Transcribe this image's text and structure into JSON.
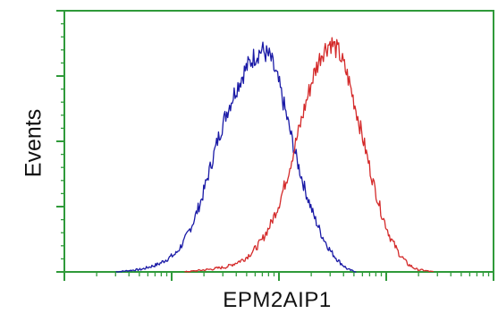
{
  "chart_data": {
    "type": "line",
    "title": "",
    "xlabel": "EPM2AIP1",
    "ylabel": "Events",
    "x_scale": "log",
    "xlim": [
      0,
      1
    ],
    "ylim": [
      0,
      1
    ],
    "grid": false,
    "frame_color": "#2f9a3a",
    "series": [
      {
        "color": "#1a1aa6",
        "x": [
          0.12,
          0.18,
          0.22,
          0.26,
          0.28,
          0.3,
          0.32,
          0.34,
          0.36,
          0.38,
          0.4,
          0.42,
          0.44,
          0.46,
          0.48,
          0.5,
          0.52,
          0.54,
          0.56,
          0.58,
          0.6,
          0.62,
          0.64,
          0.66,
          0.68
        ],
        "y": [
          0.0,
          0.01,
          0.03,
          0.07,
          0.12,
          0.19,
          0.28,
          0.4,
          0.52,
          0.62,
          0.7,
          0.77,
          0.82,
          0.85,
          0.82,
          0.72,
          0.58,
          0.44,
          0.32,
          0.22,
          0.14,
          0.08,
          0.04,
          0.01,
          0.0
        ]
      },
      {
        "color": "#d42a2a",
        "x": [
          0.28,
          0.34,
          0.38,
          0.42,
          0.44,
          0.46,
          0.48,
          0.5,
          0.52,
          0.54,
          0.56,
          0.58,
          0.6,
          0.62,
          0.64,
          0.66,
          0.68,
          0.7,
          0.72,
          0.74,
          0.76,
          0.78,
          0.8,
          0.82,
          0.86
        ],
        "y": [
          0.0,
          0.01,
          0.02,
          0.05,
          0.08,
          0.12,
          0.18,
          0.26,
          0.37,
          0.5,
          0.63,
          0.75,
          0.84,
          0.88,
          0.84,
          0.75,
          0.62,
          0.48,
          0.34,
          0.22,
          0.13,
          0.07,
          0.03,
          0.01,
          0.0
        ]
      }
    ]
  }
}
